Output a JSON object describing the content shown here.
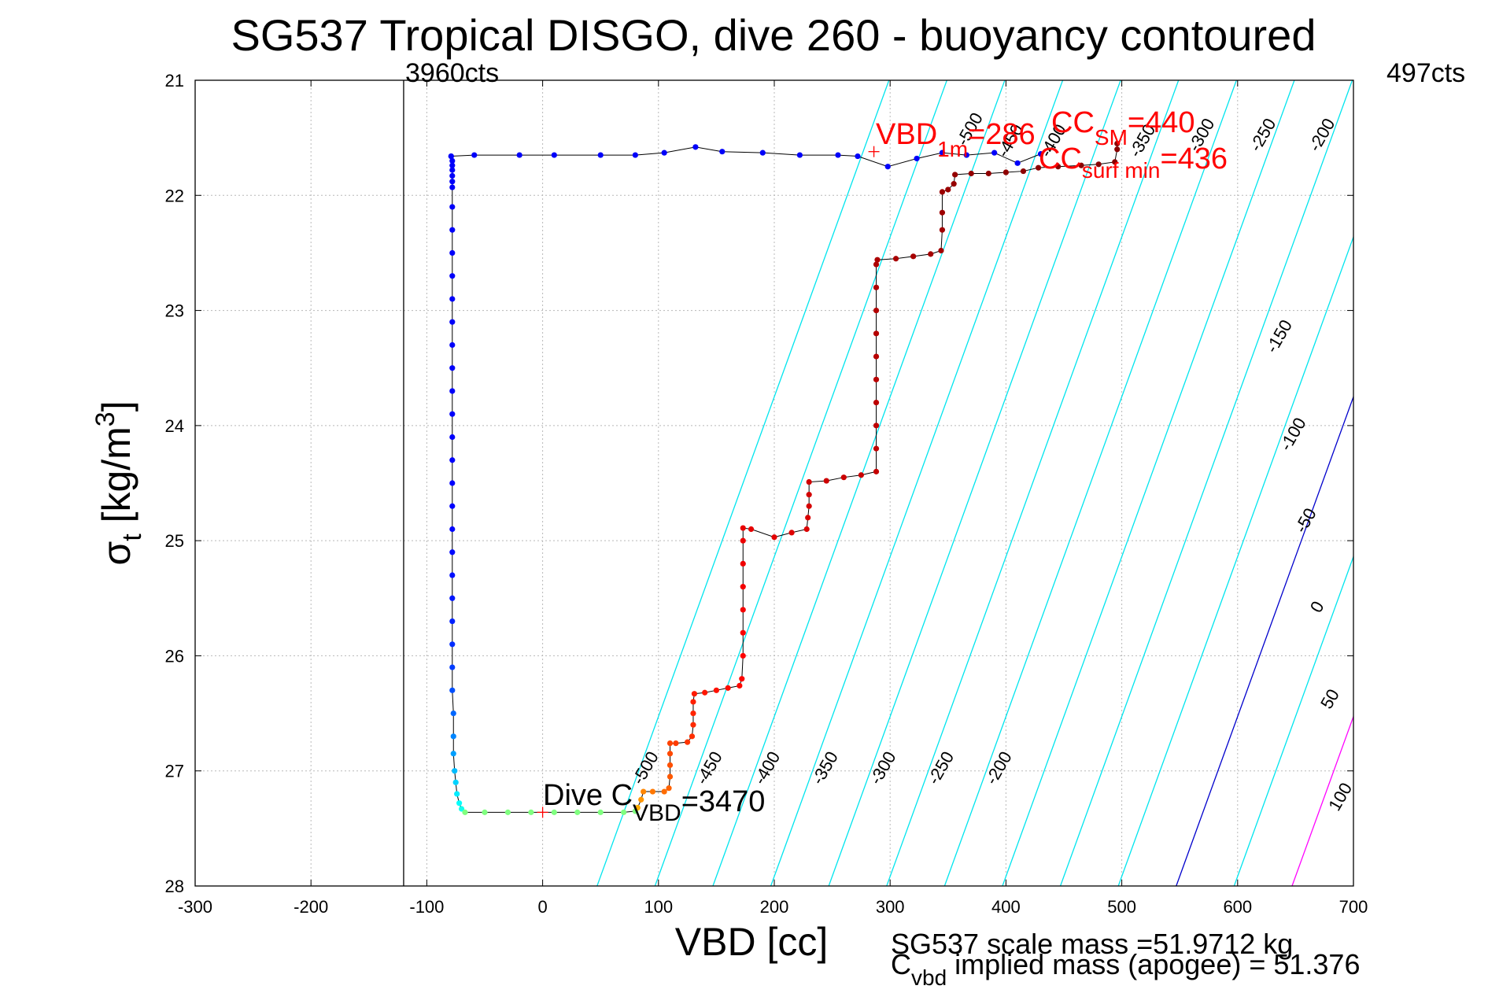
{
  "chart_data": {
    "type": "scatter",
    "title": "SG537 Tropical DISGO, dive 260 - buoyancy contoured",
    "xlabel": "VBD [cc]",
    "ylabel_main": "σ",
    "ylabel_sub": "t",
    "ylabel_rest": " [kg/m",
    "ylabel_sup": "3",
    "ylabel_end": "]",
    "xlim": [
      -300,
      700
    ],
    "ylim": [
      21,
      28
    ],
    "y_reversed": true,
    "grid": true,
    "x_ticks": [
      -300,
      -200,
      -100,
      0,
      100,
      200,
      300,
      400,
      500,
      600,
      700
    ],
    "y_ticks": [
      21,
      22,
      23,
      24,
      25,
      26,
      27,
      28
    ],
    "annotations": {
      "left_counts": "3960cts",
      "right_counts": "497cts",
      "vbd1m_main": "VBD",
      "vbd1m_sub": "1m",
      "vbd1m_value": "=286",
      "ccsm_main": "CC",
      "ccsm_sub": "SM",
      "ccsm_value": "=440",
      "ccsurf_main": "CC",
      "ccsurf_sub": "surf min",
      "ccsurf_value": "=436",
      "dive_c_main": "Dive C",
      "dive_c_sub": "VBD",
      "dive_c_value": "=3470",
      "footer_line1": "SG537 scale mass =51.9712 kg",
      "footer_line2_main": "C",
      "footer_line2_sub": "vbd",
      "footer_line2_rest": " implied mass (apogee) = 51.376"
    },
    "vertical_line_x": -120,
    "markers": {
      "vbd_1m": {
        "x": 286,
        "y": 21.62
      },
      "dive_c": {
        "x": 0,
        "y": 27.36
      }
    },
    "contours": [
      {
        "level": "-500",
        "color": "#00e5ee",
        "x_at_28": 47
      },
      {
        "level": "-450",
        "color": "#00e5ee",
        "x_at_28": 97
      },
      {
        "level": "-400",
        "color": "#00e5ee",
        "x_at_28": 147
      },
      {
        "level": "-350",
        "color": "#00e5ee",
        "x_at_28": 197
      },
      {
        "level": "-300",
        "color": "#00e5ee",
        "x_at_28": 247
      },
      {
        "level": "-250",
        "color": "#00e5ee",
        "x_at_28": 297
      },
      {
        "level": "-200",
        "color": "#00e5ee",
        "x_at_28": 347
      },
      {
        "level": "-150",
        "color": "#00e5ee",
        "x_at_28": 397
      },
      {
        "level": "-100",
        "color": "#00e5ee",
        "x_at_28": 447
      },
      {
        "level": "-50",
        "color": "#00e5ee",
        "x_at_28": 497
      },
      {
        "level": "0",
        "color": "#0000cc",
        "x_at_28": 547
      },
      {
        "level": "50",
        "color": "#00e5ee",
        "x_at_28": 597
      },
      {
        "level": "100",
        "color": "#ff00ff",
        "x_at_28": 647
      }
    ],
    "contour_slope_per_sigma": 36,
    "contour_labels": [
      {
        "text": "-500",
        "x": 93,
        "y": 27.0
      },
      {
        "text": "-450",
        "x": 148,
        "y": 27.0
      },
      {
        "text": "-400",
        "x": 198,
        "y": 27.0
      },
      {
        "text": "-350",
        "x": 248,
        "y": 27.0
      },
      {
        "text": "-300",
        "x": 298,
        "y": 27.0
      },
      {
        "text": "-250",
        "x": 348,
        "y": 27.0
      },
      {
        "text": "-200",
        "x": 398,
        "y": 27.0
      },
      {
        "text": "-500",
        "x": 373,
        "y": 21.45
      },
      {
        "text": "-450",
        "x": 408,
        "y": 21.55
      },
      {
        "text": "-400",
        "x": 445,
        "y": 21.55
      },
      {
        "text": "-350",
        "x": 522,
        "y": 21.55
      },
      {
        "text": "-300",
        "x": 573,
        "y": 21.5
      },
      {
        "text": "-250",
        "x": 626,
        "y": 21.5
      },
      {
        "text": "-200",
        "x": 677,
        "y": 21.5
      },
      {
        "text": "-150",
        "x": 640,
        "y": 23.25
      },
      {
        "text": "-100",
        "x": 652,
        "y": 24.1
      },
      {
        "text": "-50",
        "x": 663,
        "y": 24.85
      },
      {
        "text": "0",
        "x": 673,
        "y": 25.6
      },
      {
        "text": "50",
        "x": 684,
        "y": 26.4
      },
      {
        "text": "100",
        "x": 693,
        "y": 27.25
      }
    ],
    "series": [
      {
        "role": "dive",
        "points": [
          [
            -79,
            21.66
          ],
          [
            -78,
            21.7
          ],
          [
            -78,
            21.74
          ],
          [
            -78,
            21.78
          ],
          [
            -78,
            21.83
          ],
          [
            -78,
            21.88
          ],
          [
            -78,
            21.93
          ],
          [
            -78,
            22.1
          ],
          [
            -78,
            22.3
          ],
          [
            -78,
            22.5
          ],
          [
            -78,
            22.7
          ],
          [
            -78,
            22.9
          ],
          [
            -78,
            23.1
          ],
          [
            -78,
            23.3
          ],
          [
            -78,
            23.5
          ],
          [
            -78,
            23.7
          ],
          [
            -78,
            23.9
          ],
          [
            -78,
            24.1
          ],
          [
            -78,
            24.3
          ],
          [
            -78,
            24.5
          ],
          [
            -78,
            24.7
          ],
          [
            -78,
            24.9
          ],
          [
            -78,
            25.1
          ],
          [
            -78,
            25.3
          ],
          [
            -78,
            25.5
          ],
          [
            -78,
            25.7
          ],
          [
            -78,
            25.9
          ],
          [
            -78,
            26.1
          ],
          [
            -78,
            26.3
          ],
          [
            -77,
            26.5
          ],
          [
            -77,
            26.7
          ],
          [
            -77,
            26.85
          ],
          [
            -76,
            27.0
          ],
          [
            -75,
            27.1
          ],
          [
            -74,
            27.2
          ],
          [
            -72,
            27.28
          ],
          [
            -70,
            27.33
          ],
          [
            -67,
            27.36
          ],
          [
            -50,
            27.36
          ],
          [
            -30,
            27.36
          ],
          [
            -10,
            27.36
          ],
          [
            10,
            27.36
          ],
          [
            30,
            27.36
          ],
          [
            50,
            27.36
          ],
          [
            70,
            27.36
          ],
          [
            80,
            27.35
          ],
          [
            82,
            27.32
          ],
          [
            85,
            27.25
          ],
          [
            87,
            27.18
          ],
          [
            95,
            27.18
          ],
          [
            105,
            27.18
          ],
          [
            109,
            27.15
          ],
          [
            110,
            27.05
          ],
          [
            110,
            26.95
          ],
          [
            110,
            26.85
          ],
          [
            110,
            26.76
          ],
          [
            115,
            26.76
          ],
          [
            125,
            26.75
          ],
          [
            129,
            26.7
          ],
          [
            130,
            26.6
          ],
          [
            130,
            26.5
          ],
          [
            130,
            26.4
          ],
          [
            131,
            26.33
          ],
          [
            140,
            26.32
          ],
          [
            150,
            26.3
          ],
          [
            160,
            26.28
          ],
          [
            170,
            26.26
          ],
          [
            172,
            26.2
          ],
          [
            173,
            26.0
          ],
          [
            173,
            25.8
          ],
          [
            173,
            25.6
          ],
          [
            173,
            25.4
          ],
          [
            173,
            25.2
          ],
          [
            173,
            25.0
          ],
          [
            173,
            24.89
          ],
          [
            180,
            24.9
          ],
          [
            200,
            24.97
          ],
          [
            215,
            24.93
          ],
          [
            228,
            24.9
          ],
          [
            229,
            24.8
          ],
          [
            230,
            24.7
          ],
          [
            230,
            24.6
          ],
          [
            230,
            24.49
          ],
          [
            245,
            24.48
          ],
          [
            260,
            24.45
          ],
          [
            275,
            24.43
          ],
          [
            288,
            24.4
          ],
          [
            288,
            24.2
          ],
          [
            288,
            24.0
          ],
          [
            288,
            23.8
          ],
          [
            288,
            23.6
          ],
          [
            288,
            23.4
          ],
          [
            288,
            23.2
          ],
          [
            288,
            23.0
          ],
          [
            288,
            22.8
          ],
          [
            288,
            22.6
          ],
          [
            289,
            22.56
          ],
          [
            305,
            22.55
          ],
          [
            320,
            22.53
          ],
          [
            335,
            22.51
          ],
          [
            344,
            22.48
          ],
          [
            345,
            22.3
          ],
          [
            345,
            22.15
          ],
          [
            345,
            21.97
          ],
          [
            350,
            21.95
          ],
          [
            355,
            21.9
          ],
          [
            356,
            21.82
          ],
          [
            370,
            21.81
          ],
          [
            385,
            21.81
          ],
          [
            400,
            21.8
          ],
          [
            415,
            21.79
          ],
          [
            428,
            21.76
          ],
          [
            445,
            21.75
          ],
          [
            465,
            21.74
          ],
          [
            480,
            21.73
          ],
          [
            494,
            21.71
          ],
          [
            496,
            21.6
          ],
          [
            496,
            21.55
          ]
        ]
      },
      {
        "role": "climb",
        "points": [
          [
            -79,
            21.66
          ],
          [
            -59,
            21.65
          ],
          [
            -20,
            21.65
          ],
          [
            10,
            21.65
          ],
          [
            50,
            21.65
          ],
          [
            80,
            21.65
          ],
          [
            105,
            21.63
          ],
          [
            132,
            21.58
          ],
          [
            155,
            21.62
          ],
          [
            190,
            21.63
          ],
          [
            222,
            21.65
          ],
          [
            255,
            21.65
          ],
          [
            272,
            21.66
          ],
          [
            298,
            21.75
          ],
          [
            323,
            21.68
          ],
          [
            345,
            21.63
          ],
          [
            366,
            21.65
          ],
          [
            390,
            21.63
          ],
          [
            410,
            21.72
          ],
          [
            430,
            21.64
          ]
        ]
      }
    ]
  }
}
